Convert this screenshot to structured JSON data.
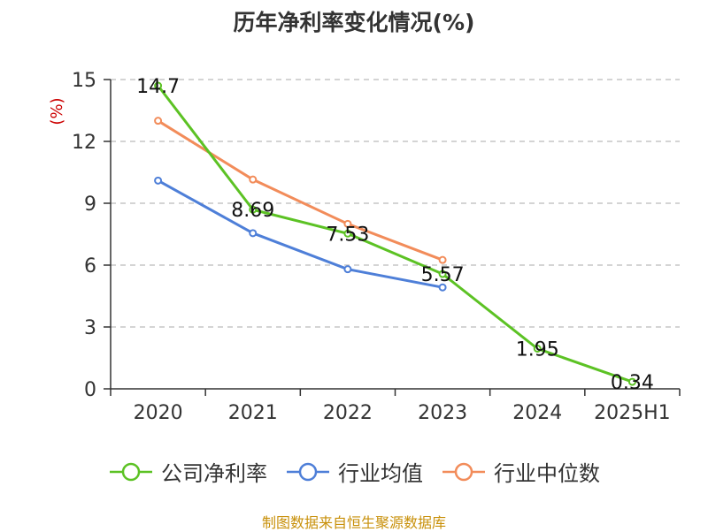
{
  "title": "历年净利率变化情况(%)",
  "footer": "制图数据来自恒生聚源数据库",
  "chart_data": {
    "type": "line",
    "title": "历年净利率变化情况(%)",
    "ylabel": "(%)",
    "categories": [
      "2020",
      "2021",
      "2022",
      "2023",
      "2024",
      "2025H1"
    ],
    "yticks": [
      "0",
      "3",
      "6",
      "9",
      "12",
      "15"
    ],
    "ylim": [
      0,
      15
    ],
    "grid": "horizontal-dashed",
    "legend_position": "bottom",
    "series": [
      {
        "name": "公司净利率",
        "color": "#5cc224",
        "values": [
          14.7,
          8.69,
          7.53,
          5.57,
          1.95,
          0.34
        ],
        "labels": [
          "14.7",
          "8.69",
          "7.53",
          "5.57",
          "1.95",
          "0.34"
        ]
      },
      {
        "name": "行业均值",
        "color": "#4e7fd8",
        "values": [
          10.1,
          7.55,
          5.8,
          4.92,
          null,
          null
        ]
      },
      {
        "name": "行业中位数",
        "color": "#f28c5a",
        "values": [
          13.0,
          10.15,
          8.0,
          6.25,
          null,
          null
        ]
      }
    ]
  }
}
